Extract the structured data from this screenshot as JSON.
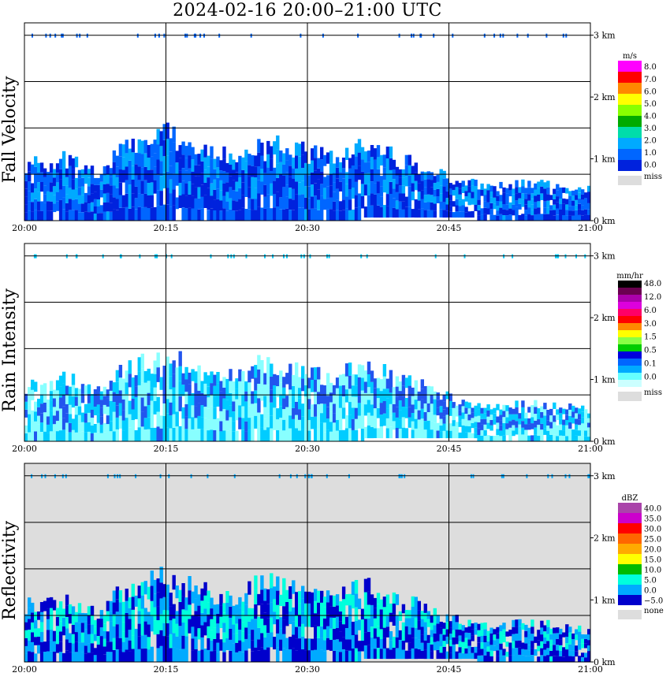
{
  "title": "2024-02-16   20:00–21:00 UTC",
  "chart_data": [
    {
      "type": "heatmap",
      "ylabel": "Fall Velocity",
      "x_ticks": [
        "20:00",
        "20:15",
        "20:30",
        "20:45",
        "21:00"
      ],
      "y_ticks": [
        "0 km",
        "1 km",
        "2 km",
        "3 km"
      ],
      "xlim": [
        "20:00",
        "21:00"
      ],
      "ylim_km": [
        0,
        3
      ],
      "grid": true,
      "legend": {
        "unit": "m/s",
        "labels": [
          "8.0",
          "7.0",
          "6.0",
          "5.0",
          "4.0",
          "3.0",
          "2.0",
          "1.0",
          "0.0"
        ],
        "colors": [
          "#ff00ff",
          "#ff0000",
          "#ff8800",
          "#ffff00",
          "#88ff00",
          "#00aa00",
          "#00ddaa",
          "#00aaff",
          "#0066ff",
          "#0022dd"
        ],
        "miss_label": "miss",
        "miss_color": "#dddddd"
      },
      "echo": {
        "top_km": [
          0.9,
          0.95,
          1.0,
          0.75,
          1.1,
          1.3,
          1.4,
          1.2,
          1.1,
          1.0,
          1.3,
          1.2,
          1.1,
          1.05,
          1.15,
          1.2,
          0.95,
          0.9,
          0.7,
          0.6,
          0.55,
          0.6,
          0.6,
          0.55,
          0.5
        ],
        "colors": [
          "#0022dd",
          "#0066ff",
          "#00aaff"
        ]
      }
    },
    {
      "type": "heatmap",
      "ylabel": "Rain Intensity",
      "x_ticks": [
        "20:00",
        "20:15",
        "20:30",
        "20:45",
        "21:00"
      ],
      "y_ticks": [
        "0 km",
        "1 km",
        "2 km",
        "3 km"
      ],
      "xlim": [
        "20:00",
        "21:00"
      ],
      "ylim_km": [
        0,
        3
      ],
      "grid": true,
      "legend": {
        "unit": "mm/hr",
        "labels": [
          "48.0",
          "12.0",
          "6.0",
          "3.0",
          "1.5",
          "0.5",
          "0.1",
          "0.0"
        ],
        "colors": [
          "#000000",
          "#6a0050",
          "#aa00aa",
          "#dd00dd",
          "#ff0066",
          "#ff0000",
          "#ff8800",
          "#ffff00",
          "#88ff44",
          "#00cc00",
          "#0000dd",
          "#0066ff",
          "#00aaff",
          "#66ffff",
          "#ccffff"
        ],
        "miss_label": "miss",
        "miss_color": "#dddddd"
      },
      "echo": {
        "top_km": [
          0.9,
          0.95,
          1.0,
          0.75,
          1.1,
          1.3,
          1.4,
          1.2,
          1.1,
          1.0,
          1.3,
          1.2,
          1.1,
          1.05,
          1.15,
          1.2,
          0.95,
          0.9,
          0.7,
          0.6,
          0.55,
          0.6,
          0.6,
          0.55,
          0.5
        ],
        "colors": [
          "#88ffff",
          "#00ccff",
          "#2255ee"
        ]
      }
    },
    {
      "type": "heatmap",
      "ylabel": "Reflectivity",
      "x_ticks": [
        "20:00",
        "20:15",
        "20:30",
        "20:45",
        "21:00"
      ],
      "y_ticks": [
        "0 km",
        "1 km",
        "2 km",
        "3 km"
      ],
      "xlim": [
        "20:00",
        "21:00"
      ],
      "ylim_km": [
        0,
        3
      ],
      "grid": true,
      "legend": {
        "unit": "dBZ",
        "labels": [
          "40.0",
          "35.0",
          "30.0",
          "25.0",
          "20.0",
          "15.0",
          "10.0",
          "5.0",
          "0.0",
          "−5.0"
        ],
        "colors": [
          "#aa44aa",
          "#cc00cc",
          "#ff0000",
          "#ff6600",
          "#ffaa00",
          "#ffff00",
          "#00bb00",
          "#00ffdd",
          "#00aaff",
          "#0000cc"
        ],
        "miss_label": "none",
        "miss_color": "#dddddd"
      },
      "echo": {
        "top_km": [
          0.9,
          0.95,
          1.0,
          0.75,
          1.1,
          1.3,
          1.4,
          1.2,
          1.1,
          1.0,
          1.3,
          1.2,
          1.1,
          1.05,
          1.15,
          1.2,
          0.95,
          0.9,
          0.7,
          0.6,
          0.55,
          0.6,
          0.6,
          0.55,
          0.5
        ],
        "colors": [
          "#0000cc",
          "#00aaff",
          "#00ffdd"
        ]
      }
    }
  ]
}
